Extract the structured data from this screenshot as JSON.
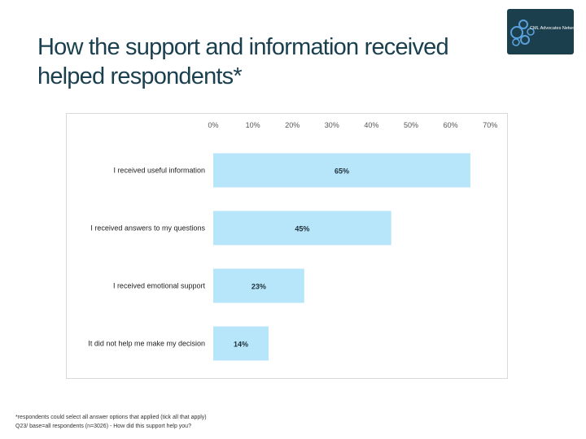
{
  "title_line1": "How the support and information received",
  "title_line2": "helped respondents*",
  "logo": {
    "text": "CML Advocates Network"
  },
  "chart_data": {
    "type": "bar",
    "orientation": "horizontal",
    "categories": [
      "I received useful information",
      "I received answers to my questions",
      "I received emotional support",
      "It did not help me make my decision"
    ],
    "values": [
      65,
      45,
      23,
      14
    ],
    "data_labels": [
      "65%",
      "45%",
      "23%",
      "14%"
    ],
    "xlim": [
      0,
      70
    ],
    "xticks": [
      0,
      10,
      20,
      30,
      40,
      50,
      60,
      70
    ],
    "xtick_labels": [
      "0%",
      "10%",
      "20%",
      "30%",
      "40%",
      "50%",
      "60%",
      "70%"
    ],
    "axis_position": "top",
    "grid": false,
    "bar_color": "#b7e6fa",
    "title": "",
    "xlabel": "",
    "ylabel": ""
  },
  "footnote": {
    "line1": "*respondents could select all answer options that applied (tick all that apply)",
    "line2": "Q23/ base=all respondents (n=3026) - How did this support help you?"
  },
  "colors": {
    "title": "#1a3f4f",
    "logo_bg": "#1c3f4e",
    "logo_circle": "#5aa0dc"
  }
}
